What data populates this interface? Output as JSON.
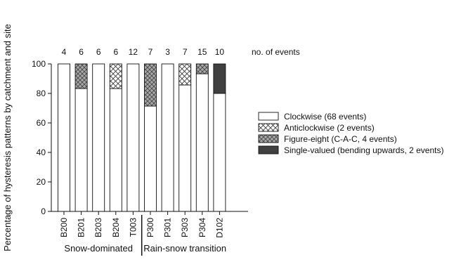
{
  "chart_data": {
    "type": "bar",
    "stacked": true,
    "ylabel": "Percentage of hysteresis patterns by catchment and site",
    "ylim": [
      0,
      100
    ],
    "yticks": [
      0,
      20,
      40,
      60,
      80,
      100
    ],
    "categories": [
      "B200",
      "B201",
      "B203",
      "B204",
      "T003",
      "P300",
      "P301",
      "P303",
      "P304",
      "D102"
    ],
    "event_counts": [
      "4",
      "6",
      "6",
      "6",
      "12",
      "7",
      "3",
      "7",
      "15",
      "10"
    ],
    "event_counts_label": "no. of events",
    "groups": [
      {
        "label": "Snow-dominated",
        "categories": [
          "B200",
          "B201",
          "B203",
          "B204",
          "T003"
        ]
      },
      {
        "label": "Rain-snow transition",
        "categories": [
          "P300",
          "P301",
          "P303",
          "P304",
          "D102"
        ]
      }
    ],
    "series": [
      {
        "name": "Clockwise (68 events)",
        "pattern": "plain",
        "color": "#ffffff",
        "values": [
          100,
          83.3,
          100,
          83.3,
          100,
          71.4,
          100,
          85.7,
          93.3,
          80
        ]
      },
      {
        "name": "Anticlockwise (2 events)",
        "pattern": "cross-hatch-open",
        "color": "#ffffff",
        "values": [
          0,
          0,
          0,
          16.7,
          0,
          0,
          0,
          14.3,
          0,
          0
        ]
      },
      {
        "name": "Figure-eight (C-A-C, 4 events)",
        "pattern": "cross-hatch-grey",
        "color": "#a8a8a8",
        "values": [
          0,
          16.7,
          0,
          0,
          0,
          28.6,
          0,
          0,
          6.7,
          0
        ]
      },
      {
        "name": "Single-valued (bending upwards, 2 events)",
        "pattern": "solid",
        "color": "#404040",
        "values": [
          0,
          0,
          0,
          0,
          0,
          0,
          0,
          0,
          0,
          20
        ]
      }
    ],
    "legend_position": "right",
    "grid": false
  }
}
